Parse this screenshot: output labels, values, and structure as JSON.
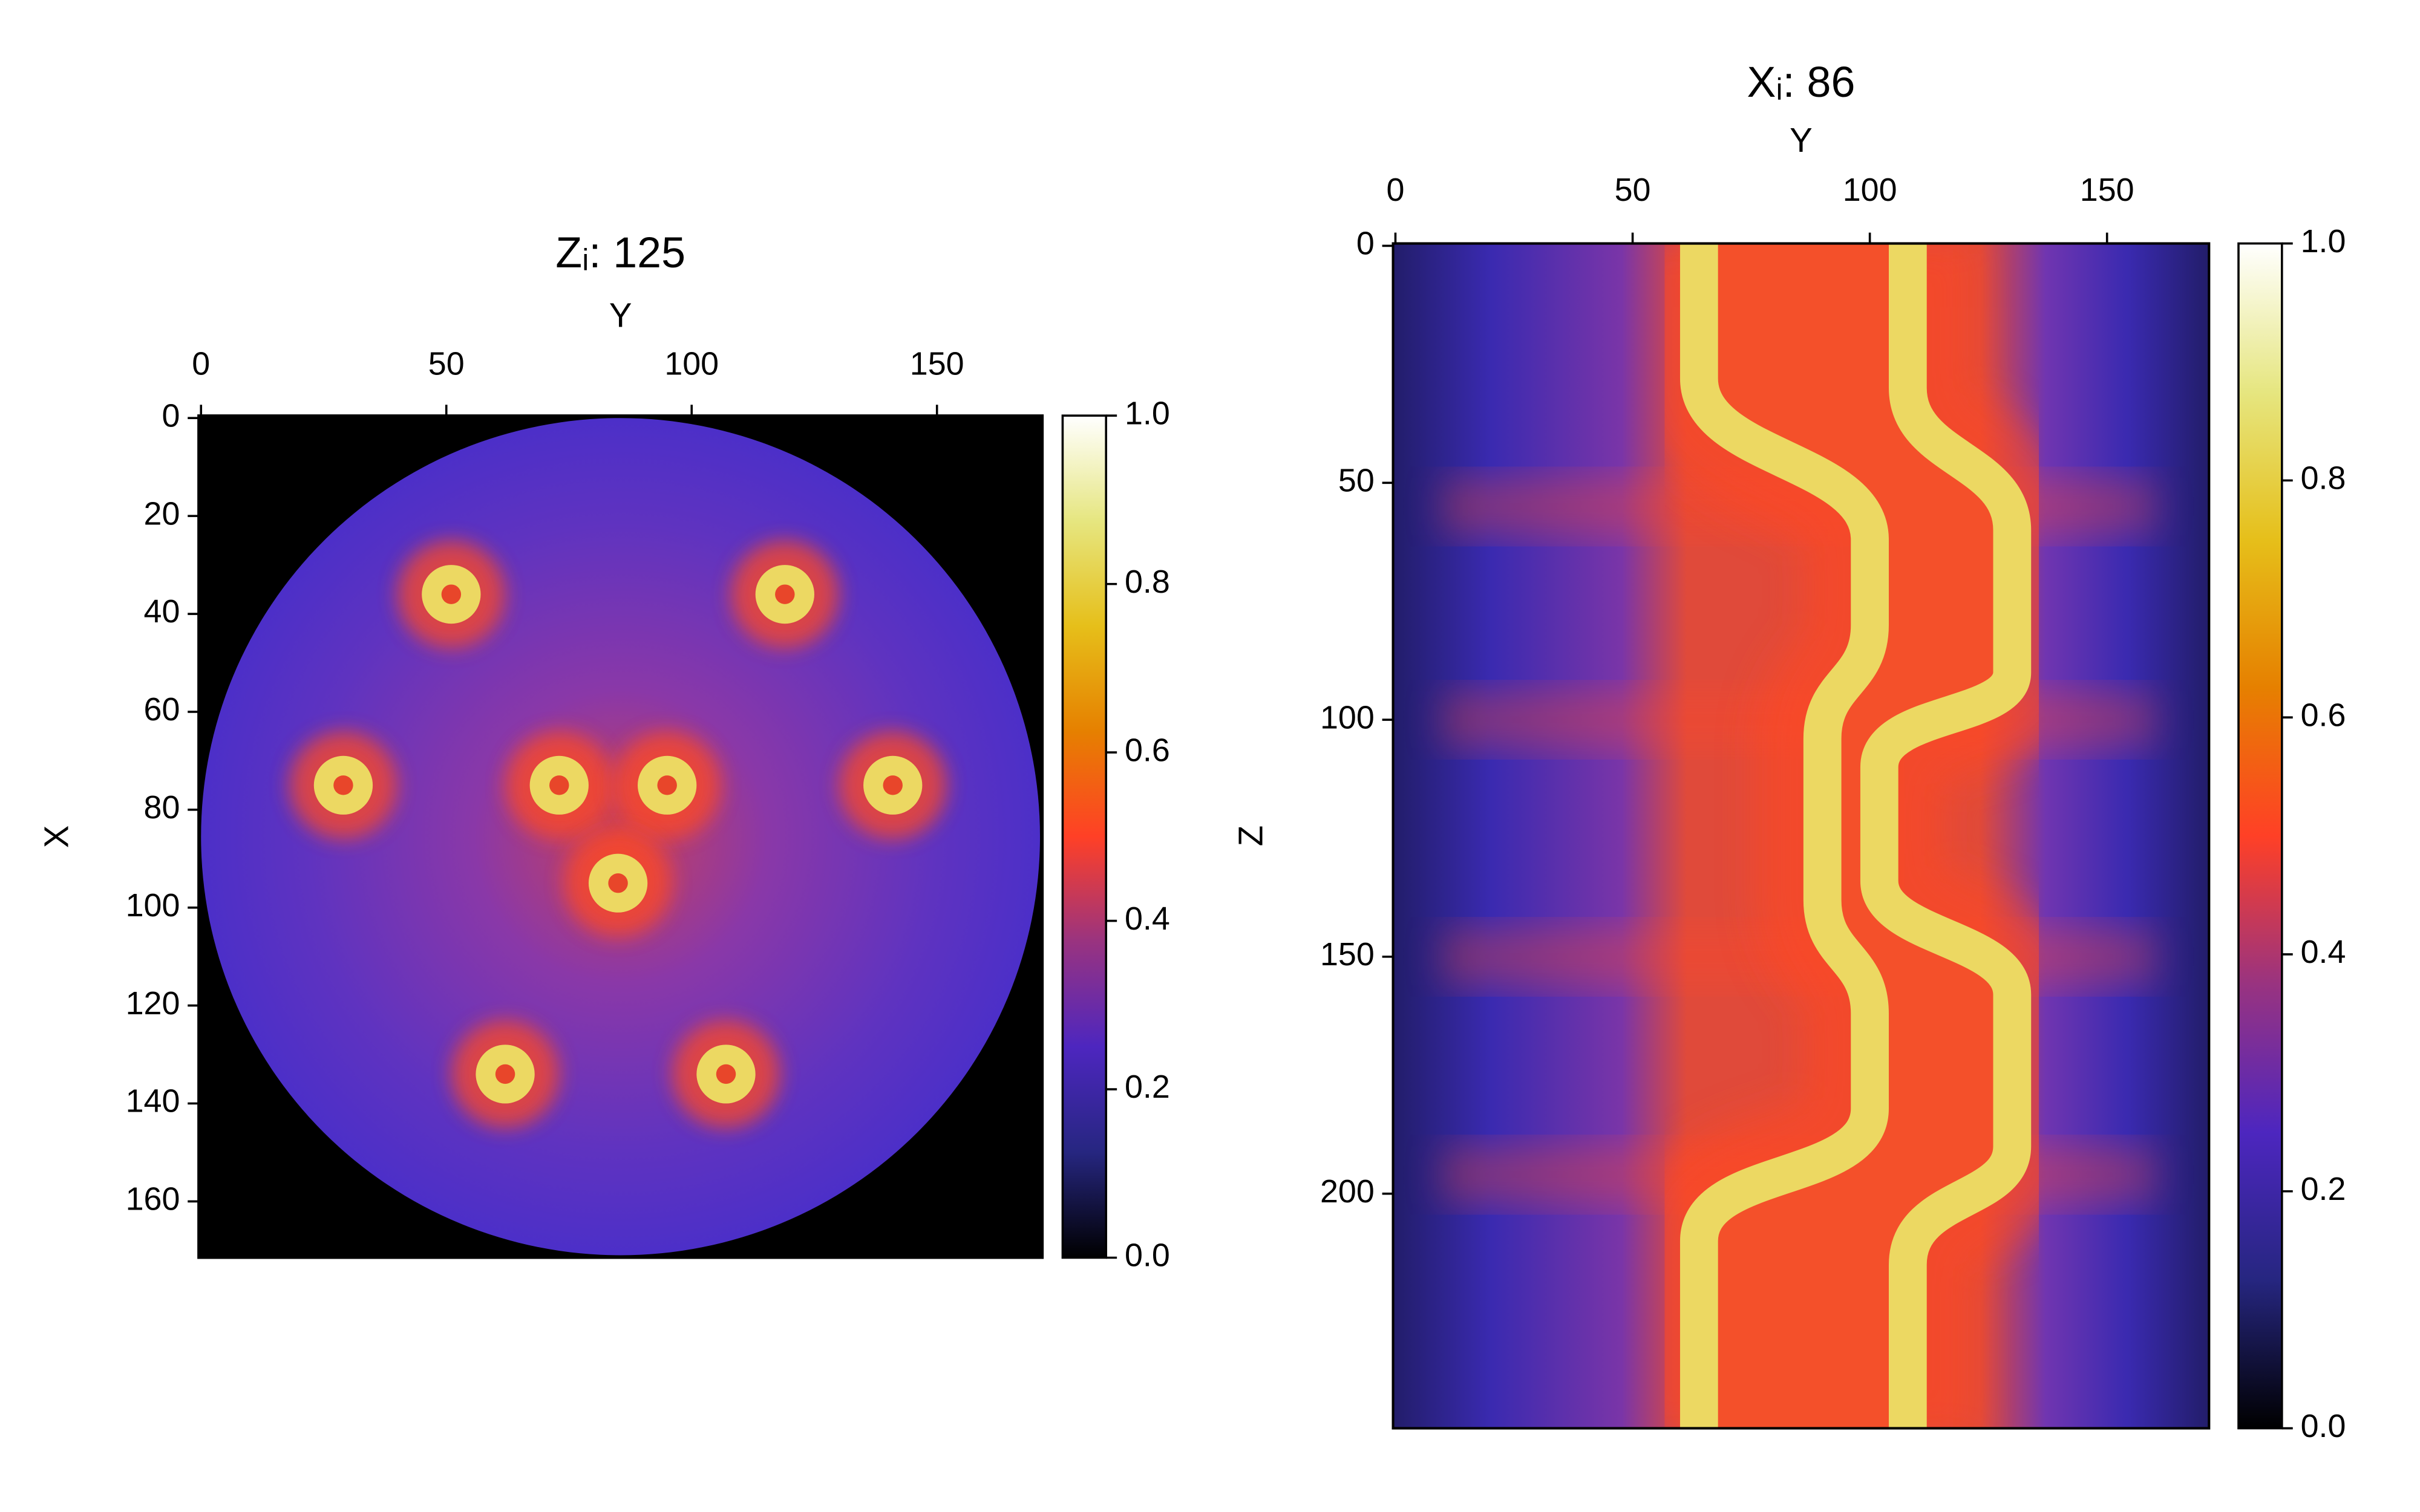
{
  "chart_data": [
    {
      "type": "heatmap",
      "title": "Zᵢ: 125",
      "xlabel": "Y",
      "ylabel": "X",
      "xlim": [
        -0.5,
        171.5
      ],
      "ylim": [
        171.5,
        -0.5
      ],
      "xticks": [
        0,
        50,
        100,
        150
      ],
      "yticks": [
        0,
        20,
        40,
        60,
        80,
        100,
        120,
        140,
        160
      ],
      "colormap": "CMRmap",
      "colorbar": {
        "lim": [
          0,
          1
        ],
        "ticks": [
          {
            "value": 0,
            "label": "0.0"
          },
          0.2,
          0.4,
          0.6,
          0.8,
          {
            "value": 1,
            "label": "1.0"
          }
        ]
      }
    },
    {
      "type": "heatmap",
      "title": "Xᵢ: 86",
      "xlabel": "Y",
      "ylabel": "Z",
      "xlim": [
        -0.5,
        171.5
      ],
      "ylim": [
        249.5,
        -0.5
      ],
      "xticks": [
        0,
        50,
        100,
        150
      ],
      "yticks": [
        0,
        50,
        100,
        150,
        200
      ],
      "colormap": "CMRmap",
      "colorbar": {
        "lim": [
          0,
          1
        ],
        "ticks": [
          {
            "value": 0,
            "label": "0.0"
          },
          0.2,
          0.4,
          0.6,
          0.8,
          {
            "value": 1,
            "label": "1.0"
          }
        ]
      }
    }
  ]
}
